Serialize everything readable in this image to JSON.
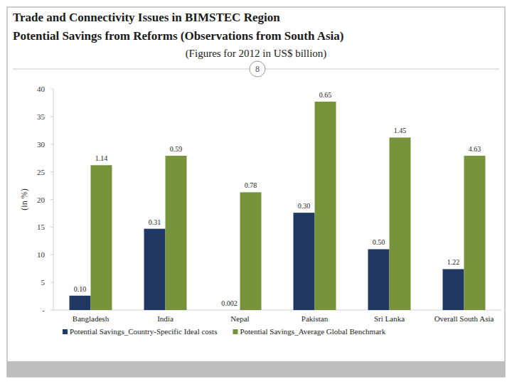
{
  "chart_data": {
    "type": "bar",
    "title": "Trade and Connectivity Issues in BIMSTEC Region",
    "subtitle": "Potential Savings from Reforms (Observations from South Asia)",
    "caption": "(Figures for 2012 in US$ billion)",
    "page_number": "8",
    "y_label": "(in %)",
    "categories": [
      "Bangladesh",
      "India",
      "Nepal",
      "Pakistan",
      "Sri Lanka",
      "Overall South Asia"
    ],
    "series": [
      {
        "name": "Potential Savings_Country-Specific Ideal costs",
        "color": "#1f3864",
        "values": [
          2.6,
          14.7,
          0,
          17.6,
          11,
          7.4
        ],
        "annotations": [
          "0.10",
          "0.31",
          "0.002",
          "0.30",
          "0.50",
          "1.22"
        ]
      },
      {
        "name": "Potential Savings_Average Global Benchmark",
        "color": "#77933c",
        "values": [
          26.2,
          27.9,
          21.3,
          37.7,
          31.2,
          27.9
        ],
        "annotations": [
          "1.14",
          "0.59",
          "0.78",
          "0.65",
          "1.45",
          "4.63"
        ]
      }
    ],
    "ylim": [
      0,
      40
    ],
    "yticks": [
      {
        "value": 0,
        "label": "-"
      },
      5,
      10,
      15,
      20,
      25,
      30,
      35,
      40
    ],
    "grid": false,
    "legend": "bottom"
  }
}
